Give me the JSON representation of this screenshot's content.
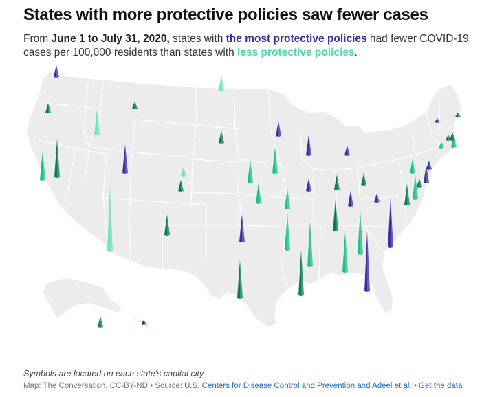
{
  "title": "States with more protective policies saw fewer cases",
  "subtitle": {
    "part1": "From ",
    "dates": "June 1 to July 31, 2020,",
    "part2": " states with ",
    "most": "the most protective policies",
    "part3": " had fewer COVID-19 cases per 100,000 residents than states with ",
    "less": "less protective policies",
    "part4": "."
  },
  "note": "Symbols are located on each state's capital city.",
  "footer": {
    "credit": "Map: The Conversation, CC-BY-ND • Source: ",
    "source_link": "U.S. Centers for Disease Control and Prevention and Adeel et al.",
    "separator": " • ",
    "data_link": "Get the data"
  },
  "colors": {
    "most_protective": "#3b2fa0",
    "less_protective_light": "#6ee3bf",
    "less_protective_mid": "#1fbf86",
    "less_protective_dark": "#0e7a55",
    "land": "#ececec",
    "border": "#ffffff"
  },
  "map_data": {
    "encoding": "spike height = cases per 100,000 residents",
    "categories": [
      "most protective",
      "less protective"
    ],
    "spikes": [
      {
        "state": "WA",
        "group": "most",
        "shade": "most",
        "value": 18
      },
      {
        "state": "OR",
        "group": "less",
        "shade": "dark",
        "value": 14
      },
      {
        "state": "ID",
        "group": "less",
        "shade": "light",
        "value": 38
      },
      {
        "state": "MT",
        "group": "less",
        "shade": "dark",
        "value": 10
      },
      {
        "state": "ND",
        "group": "less",
        "shade": "light",
        "value": 22
      },
      {
        "state": "SD",
        "group": "less",
        "shade": "dark",
        "value": 18
      },
      {
        "state": "MN",
        "group": "most",
        "shade": "most",
        "value": 22
      },
      {
        "state": "WI",
        "group": "most",
        "shade": "most",
        "value": 30
      },
      {
        "state": "MI",
        "group": "most",
        "shade": "most",
        "value": 14
      },
      {
        "state": "NV",
        "group": "less",
        "shade": "mid",
        "value": 42
      },
      {
        "state": "CA",
        "group": "less",
        "shade": "dark",
        "value": 56
      },
      {
        "state": "UT",
        "group": "most",
        "shade": "most",
        "value": 42
      },
      {
        "state": "WY",
        "group": "less",
        "shade": "light",
        "value": 12
      },
      {
        "state": "CO",
        "group": "less",
        "shade": "dark",
        "value": 16
      },
      {
        "state": "NE",
        "group": "less",
        "shade": "mid",
        "value": 34
      },
      {
        "state": "IA",
        "group": "less",
        "shade": "mid",
        "value": 38
      },
      {
        "state": "IL",
        "group": "most",
        "shade": "most",
        "value": 18
      },
      {
        "state": "IN",
        "group": "less",
        "shade": "dark",
        "value": 22
      },
      {
        "state": "OH",
        "group": "less",
        "shade": "dark",
        "value": 18
      },
      {
        "state": "PA",
        "group": "less",
        "shade": "mid",
        "value": 20
      },
      {
        "state": "NY",
        "group": "most",
        "shade": "most",
        "value": 12
      },
      {
        "state": "VT",
        "group": "most",
        "shade": "most",
        "value": 6
      },
      {
        "state": "NH",
        "group": "less",
        "shade": "dark",
        "value": 8
      },
      {
        "state": "ME",
        "group": "less",
        "shade": "dark",
        "value": 6
      },
      {
        "state": "MA",
        "group": "less",
        "shade": "mid",
        "value": 18
      },
      {
        "state": "RI",
        "group": "less",
        "shade": "dark",
        "value": 12
      },
      {
        "state": "CT",
        "group": "less",
        "shade": "mid",
        "value": 10
      },
      {
        "state": "NJ",
        "group": "less",
        "shade": "dark",
        "value": 12
      },
      {
        "state": "DE",
        "group": "most",
        "shade": "most",
        "value": 26
      },
      {
        "state": "MD",
        "group": "less",
        "shade": "dark",
        "value": 30
      },
      {
        "state": "AZ",
        "group": "less",
        "shade": "light",
        "value": 96
      },
      {
        "state": "NM",
        "group": "less",
        "shade": "dark",
        "value": 30
      },
      {
        "state": "KS",
        "group": "less",
        "shade": "mid",
        "value": 30
      },
      {
        "state": "MO",
        "group": "less",
        "shade": "mid",
        "value": 30
      },
      {
        "state": "KY",
        "group": "most",
        "shade": "most",
        "value": 22
      },
      {
        "state": "WV",
        "group": "most",
        "shade": "most",
        "value": 12
      },
      {
        "state": "VA",
        "group": "less",
        "shade": "mid",
        "value": 36
      },
      {
        "state": "NC",
        "group": "most",
        "shade": "most",
        "value": 72
      },
      {
        "state": "OK",
        "group": "most",
        "shade": "most",
        "value": 40
      },
      {
        "state": "AR",
        "group": "less",
        "shade": "mid",
        "value": 54
      },
      {
        "state": "TN",
        "group": "less",
        "shade": "dark",
        "value": 46
      },
      {
        "state": "SC",
        "group": "less",
        "shade": "mid",
        "value": 64
      },
      {
        "state": "MS",
        "group": "less",
        "shade": "mid",
        "value": 66
      },
      {
        "state": "AL",
        "group": "less",
        "shade": "mid",
        "value": 60
      },
      {
        "state": "GA",
        "group": "most",
        "shade": "most",
        "value": 88
      },
      {
        "state": "TX",
        "group": "less",
        "shade": "dark",
        "value": 56
      },
      {
        "state": "LA",
        "group": "less",
        "shade": "dark",
        "value": 66
      },
      {
        "state": "AK",
        "group": "less",
        "shade": "dark",
        "value": 16
      },
      {
        "state": "HI",
        "group": "most",
        "shade": "most",
        "value": 6
      }
    ]
  }
}
